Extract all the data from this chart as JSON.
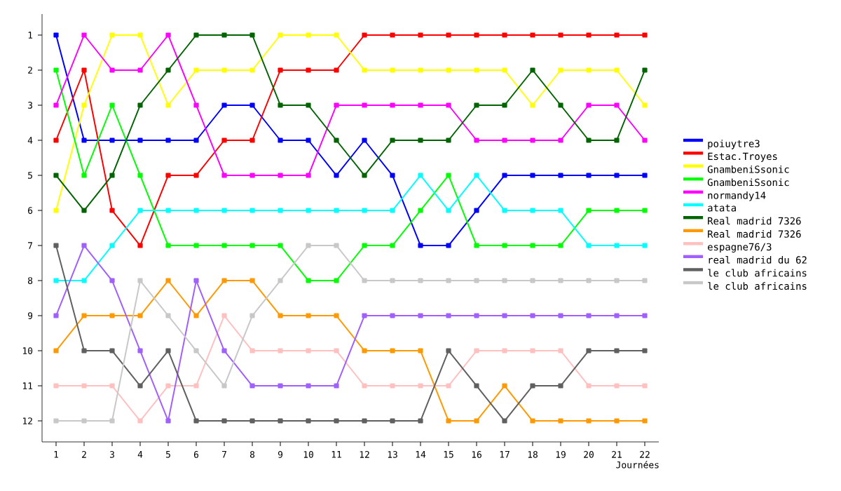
{
  "chart_data": {
    "type": "line",
    "xlabel": "Journées",
    "x": [
      1,
      2,
      3,
      4,
      5,
      6,
      7,
      8,
      9,
      10,
      11,
      12,
      13,
      14,
      15,
      16,
      17,
      18,
      19,
      20,
      21,
      22
    ],
    "xlim": [
      0.5,
      22.5
    ],
    "xticks": [
      1,
      2,
      3,
      4,
      5,
      6,
      7,
      8,
      9,
      10,
      11,
      12,
      13,
      14,
      15,
      16,
      17,
      18,
      19,
      20,
      21,
      22
    ],
    "ylim": [
      12.6,
      0.4
    ],
    "yticks": [
      1,
      2,
      3,
      4,
      5,
      6,
      7,
      8,
      9,
      10,
      11,
      12
    ],
    "grid": false,
    "legend": "right",
    "marker": "square",
    "line_style": "solid",
    "series": [
      {
        "name": "poiuytre3",
        "color": "#0000ff",
        "values": [
          1,
          4,
          4,
          4,
          4,
          4,
          3,
          3,
          4,
          4,
          5,
          4,
          5,
          7,
          7,
          6,
          5,
          5,
          5,
          5,
          5,
          5
        ]
      },
      {
        "name": "Estac.Troyes",
        "color": "#ff0000",
        "values": [
          4,
          2,
          6,
          7,
          5,
          5,
          4,
          4,
          2,
          2,
          2,
          1,
          1,
          1,
          1,
          1,
          1,
          1,
          1,
          1,
          1,
          1
        ]
      },
      {
        "name": "GnambeniSsonic",
        "color": "#ffff00",
        "values": [
          6,
          3,
          1,
          1,
          3,
          2,
          2,
          2,
          1,
          1,
          1,
          2,
          2,
          2,
          2,
          2,
          2,
          3,
          2,
          2,
          2,
          3
        ]
      },
      {
        "name": "GnambeniSsonic",
        "color": "#00ff00",
        "values": [
          2,
          5,
          3,
          5,
          7,
          7,
          7,
          7,
          7,
          8,
          8,
          7,
          7,
          6,
          5,
          7,
          7,
          7,
          7,
          6,
          6,
          6
        ]
      },
      {
        "name": "normandy14",
        "color": "#ff00ff",
        "values": [
          3,
          1,
          2,
          2,
          1,
          3,
          5,
          5,
          5,
          5,
          3,
          3,
          3,
          3,
          3,
          4,
          4,
          4,
          4,
          3,
          3,
          4
        ]
      },
      {
        "name": "atata",
        "color": "#00ffff",
        "values": [
          8,
          8,
          7,
          6,
          6,
          6,
          6,
          6,
          6,
          6,
          6,
          6,
          6,
          5,
          6,
          5,
          6,
          6,
          6,
          7,
          7,
          7
        ]
      },
      {
        "name": "Real madrid 7326",
        "color": "#006400",
        "values": [
          5,
          6,
          5,
          3,
          2,
          1,
          1,
          1,
          3,
          3,
          4,
          5,
          4,
          4,
          4,
          3,
          3,
          2,
          3,
          4,
          4,
          2
        ]
      },
      {
        "name": "Real madrid 7326",
        "color": "#ff9900",
        "values": [
          10,
          9,
          9,
          9,
          8,
          9,
          8,
          8,
          9,
          9,
          9,
          10,
          10,
          10,
          12,
          12,
          11,
          12,
          12,
          12,
          12,
          12
        ]
      },
      {
        "name": "espagne76/3",
        "color": "#ffc0c0",
        "values": [
          11,
          11,
          11,
          12,
          11,
          11,
          9,
          10,
          10,
          10,
          10,
          11,
          11,
          11,
          11,
          10,
          10,
          10,
          10,
          11,
          11,
          11
        ]
      },
      {
        "name": "real madrid du 62",
        "color": "#a060ff",
        "values": [
          9,
          7,
          8,
          10,
          12,
          8,
          10,
          11,
          11,
          11,
          11,
          9,
          9,
          9,
          9,
          9,
          9,
          9,
          9,
          9,
          9,
          9
        ]
      },
      {
        "name": "le club africains",
        "color": "#606060",
        "values": [
          7,
          10,
          10,
          11,
          10,
          12,
          12,
          12,
          12,
          12,
          12,
          12,
          12,
          12,
          10,
          11,
          12,
          11,
          11,
          10,
          10,
          10
        ]
      },
      {
        "name": "le club africains",
        "color": "#c8c8c8",
        "values": [
          12,
          12,
          12,
          8,
          9,
          10,
          11,
          9,
          8,
          7,
          7,
          8,
          8,
          8,
          8,
          8,
          8,
          8,
          8,
          8,
          8,
          8
        ]
      }
    ]
  }
}
